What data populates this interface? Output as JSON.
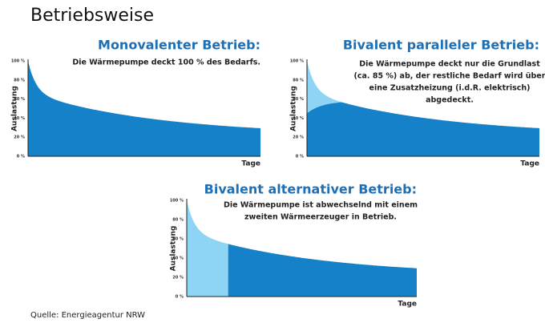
{
  "title": "Betriebsweise",
  "source": "Quelle: Energieagentur NRW",
  "panels": [
    {
      "title": "Monovalenter Betrieb:",
      "description": [
        "Die Wärmepumpe deckt 100 % des Bedarfs."
      ],
      "y_axis_label": "Auslastung",
      "x_axis_label": "Tage",
      "yticks": [
        "100 %",
        "80 %",
        "60 %",
        "40 %",
        "20 %",
        "0 %"
      ]
    },
    {
      "title": "Bivalent paralleler Betrieb:",
      "description": [
        "Die Wärmepumpe deckt nur die Grundlast",
        "(ca. 85 %) ab, der restliche Bedarf wird über",
        "eine Zusatzheizung (i.d.R. elektrisch)",
        "abgedeckt."
      ],
      "y_axis_label": "Auslastung",
      "x_axis_label": "Tage",
      "yticks": [
        "100 %",
        "80 %",
        "60 %",
        "40 %",
        "20 %",
        "0 %"
      ]
    },
    {
      "title": "Bivalent alternativer Betrieb:",
      "description": [
        "Die Wärmepumpe ist abwechselnd mit einem",
        "zweiten Wärmeerzeuger in Betrieb."
      ],
      "y_axis_label": "Auslastung",
      "x_axis_label": "Tage",
      "yticks": [
        "100 %",
        "80 %",
        "60 %",
        "40 %",
        "20 %",
        "0 %"
      ]
    }
  ]
}
